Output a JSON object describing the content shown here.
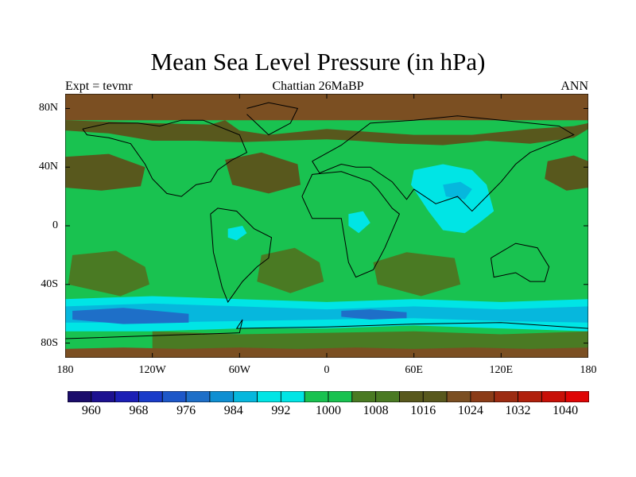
{
  "figure": {
    "title": "Mean Sea Level Pressure (in hPa)",
    "left_label": "Expt = tevmr",
    "center_label": "Chattian  26MaBP",
    "right_label": "ANN"
  },
  "map": {
    "projection": "cylindrical-equidistant",
    "lon_range": [
      -180,
      180
    ],
    "lat_range": [
      -90,
      90
    ],
    "lat_ticks": [
      {
        "value": 80,
        "label": "80N"
      },
      {
        "value": 40,
        "label": "40N"
      },
      {
        "value": 0,
        "label": "0"
      },
      {
        "value": -40,
        "label": "40S"
      },
      {
        "value": -80,
        "label": "80S"
      }
    ],
    "lon_ticks": [
      {
        "value": -180,
        "label": "180"
      },
      {
        "value": -120,
        "label": "120W"
      },
      {
        "value": -60,
        "label": "60W"
      },
      {
        "value": 0,
        "label": "0"
      },
      {
        "value": 60,
        "label": "60E"
      },
      {
        "value": 120,
        "label": "120E"
      },
      {
        "value": 180,
        "label": "180"
      }
    ],
    "background_color": "#19c250",
    "fields": [
      {
        "level": 1020,
        "lon": [
          180,
          180,
          -180,
          -180
        ],
        "lat": [
          90,
          72,
          72,
          90
        ],
        "color": "#7b4f22"
      },
      {
        "level": 1016,
        "lon": [
          -180,
          -120,
          -80,
          -70,
          -60,
          -40,
          0,
          30,
          60,
          100,
          140,
          170,
          180,
          180,
          170,
          140,
          110,
          80,
          50,
          20,
          0,
          -30,
          -60,
          -90,
          -120,
          -150,
          -180
        ],
        "lat": [
          72,
          70,
          69,
          72,
          65,
          62,
          66,
          64,
          62,
          62,
          66,
          68,
          70,
          66,
          60,
          56,
          58,
          55,
          56,
          58,
          59,
          58,
          57,
          58,
          58,
          63,
          65
        ],
        "color": "#58581d"
      },
      {
        "level": 1016,
        "lon": [
          -180,
          -150,
          -125,
          -128,
          -155,
          -180
        ],
        "lat": [
          47,
          49,
          40,
          27,
          24,
          26
        ],
        "color": "#58581d"
      },
      {
        "level": 1016,
        "lon": [
          -70,
          -45,
          -20,
          -18,
          -40,
          -65
        ],
        "lat": [
          45,
          50,
          42,
          28,
          22,
          28
        ],
        "color": "#58581d"
      },
      {
        "level": 1016,
        "lon": [
          152,
          170,
          180,
          180,
          165,
          150
        ],
        "lat": [
          44,
          48,
          44,
          26,
          24,
          32
        ],
        "color": "#58581d"
      },
      {
        "level": 1012,
        "lon": [
          -175,
          -145,
          -125,
          -122,
          -142,
          -178
        ],
        "lat": [
          -20,
          -17,
          -28,
          -40,
          -48,
          -40
        ],
        "color": "#4a7a23"
      },
      {
        "level": 1012,
        "lon": [
          -45,
          -22,
          -5,
          -2,
          -25,
          -48
        ],
        "lat": [
          -20,
          -15,
          -25,
          -38,
          -46,
          -38
        ],
        "color": "#4a7a23"
      },
      {
        "level": 1012,
        "lon": [
          32,
          55,
          88,
          92,
          65,
          35
        ],
        "lat": [
          -25,
          -18,
          -22,
          -40,
          -48,
          -40
        ],
        "color": "#4a7a23"
      },
      {
        "level": 1000,
        "lon": [
          -180,
          -120,
          -60,
          0,
          60,
          120,
          180,
          180,
          120,
          60,
          0,
          -60,
          -120,
          -180
        ],
        "lat": [
          -50,
          -48,
          -50,
          -52,
          -50,
          -52,
          -50,
          -72,
          -70,
          -68,
          -70,
          -70,
          -72,
          -72
        ],
        "color": "#00e5e5"
      },
      {
        "level": 996,
        "lon": [
          -180,
          -120,
          -60,
          0,
          60,
          120,
          180,
          180,
          120,
          60,
          0,
          -60,
          -120,
          -180
        ],
        "lat": [
          -55,
          -53,
          -55,
          -57,
          -55,
          -57,
          -55,
          -66,
          -65,
          -63,
          -64,
          -65,
          -66,
          -66
        ],
        "color": "#06b7dd"
      },
      {
        "level": 988,
        "lon": [
          -175,
          -140,
          -95,
          -95,
          -140,
          -175
        ],
        "lat": [
          -58,
          -56,
          -60,
          -66,
          -67,
          -64
        ],
        "color": "#1e6fc8"
      },
      {
        "level": 988,
        "lon": [
          10,
          30,
          55,
          55,
          30,
          10
        ],
        "lat": [
          -58,
          -57,
          -59,
          -63,
          -64,
          -62
        ],
        "color": "#1e6fc8"
      },
      {
        "level": 1004,
        "lon": [
          60,
          80,
          100,
          110,
          115,
          105,
          95,
          80,
          70,
          58
        ],
        "lat": [
          38,
          42,
          38,
          28,
          10,
          2,
          -5,
          -3,
          10,
          28
        ],
        "color": "#00e5e5"
      },
      {
        "level": 1004,
        "lon": [
          15,
          25,
          30,
          22,
          15
        ],
        "lat": [
          8,
          10,
          2,
          -5,
          0
        ],
        "color": "#00e5e5"
      },
      {
        "level": 1004,
        "lon": [
          -68,
          -58,
          -55,
          -62,
          -68
        ],
        "lat": [
          -2,
          0,
          -5,
          -10,
          -8
        ],
        "color": "#00e5e5"
      },
      {
        "level": 1000,
        "lon": [
          80,
          92,
          100,
          95,
          82
        ],
        "lat": [
          28,
          30,
          25,
          18,
          20
        ],
        "color": "#06b7dd"
      },
      {
        "level": 1012,
        "lon": [
          -120,
          -60,
          0,
          60,
          120,
          180,
          180,
          120,
          60,
          0,
          -60,
          -120
        ],
        "lat": [
          -72,
          -74,
          -73,
          -72,
          -74,
          -72,
          -85,
          -86,
          -85,
          -86,
          -85,
          -86
        ],
        "color": "#4a7a23"
      },
      {
        "level": 1020,
        "lon": [
          -180,
          -140,
          -100,
          -60,
          -20,
          20,
          60,
          100,
          140,
          180,
          180,
          -180
        ],
        "lat": [
          -84,
          -83,
          -84,
          -83,
          -84,
          -83,
          -84,
          -83,
          -84,
          -83,
          -90,
          -90
        ],
        "color": "#7b4f22"
      }
    ],
    "coastlines": [
      {
        "lon": [
          -168,
          -150,
          -130,
          -115,
          -100,
          -85,
          -75,
          -60,
          -55,
          -65,
          -75,
          -80,
          -90,
          -100,
          -110,
          -120,
          -125,
          -135,
          -150,
          -165,
          -168
        ],
        "lat": [
          66,
          70,
          70,
          68,
          72,
          72,
          68,
          62,
          50,
          45,
          38,
          30,
          28,
          20,
          22,
          32,
          42,
          56,
          60,
          62,
          66
        ]
      },
      {
        "lon": [
          -80,
          -75,
          -62,
          -50,
          -38,
          -40,
          -48,
          -58,
          -68,
          -72,
          -78,
          -80
        ],
        "lat": [
          8,
          12,
          10,
          -2,
          -8,
          -22,
          -28,
          -38,
          -52,
          -42,
          -18,
          8
        ]
      },
      {
        "lon": [
          -55,
          -40,
          -20,
          -25,
          -40,
          -55
        ],
        "lat": [
          80,
          84,
          80,
          70,
          62,
          76
        ]
      },
      {
        "lon": [
          -10,
          10,
          30,
          60,
          90,
          120,
          140,
          160,
          170,
          140,
          130,
          120,
          110,
          100,
          90,
          75,
          60,
          55,
          45,
          30,
          20,
          10,
          -5,
          -10
        ],
        "lat": [
          44,
          55,
          70,
          72,
          75,
          72,
          70,
          68,
          62,
          50,
          42,
          30,
          20,
          10,
          20,
          15,
          25,
          18,
          30,
          40,
          40,
          42,
          36,
          44
        ]
      },
      {
        "lon": [
          -17,
          -10,
          10,
          30,
          35,
          45,
          50,
          40,
          32,
          20,
          15,
          10,
          0,
          -10,
          -17
        ],
        "lat": [
          20,
          35,
          37,
          30,
          25,
          12,
          8,
          -15,
          -30,
          -35,
          -25,
          5,
          5,
          5,
          20
        ]
      },
      {
        "lon": [
          113,
          130,
          145,
          153,
          150,
          140,
          130,
          115,
          113
        ],
        "lat": [
          -22,
          -12,
          -15,
          -28,
          -38,
          -38,
          -32,
          -35,
          -22
        ]
      },
      {
        "lon": [
          -180,
          -120,
          -60,
          -58,
          -62,
          0,
          60,
          120,
          180
        ],
        "lat": [
          -77,
          -75,
          -73,
          -64,
          -70,
          -69,
          -67,
          -66,
          -70
        ]
      }
    ]
  },
  "colorbar": {
    "labels": [
      "960",
      "968",
      "976",
      "984",
      "992",
      "1000",
      "1008",
      "1016",
      "1024",
      "1032",
      "1040"
    ],
    "colors": [
      "#1b0d6b",
      "#1d1190",
      "#1c1fb5",
      "#1a3cc9",
      "#1d57c8",
      "#1e6fc8",
      "#0f8fd2",
      "#06b7dd",
      "#00e5e5",
      "#00e5e5",
      "#19c250",
      "#19c250",
      "#4a7a23",
      "#4a7a23",
      "#58581d",
      "#58581d",
      "#7b4f22",
      "#8b3c18",
      "#9c2c12",
      "#b0200c",
      "#c81008",
      "#df0505"
    ]
  }
}
